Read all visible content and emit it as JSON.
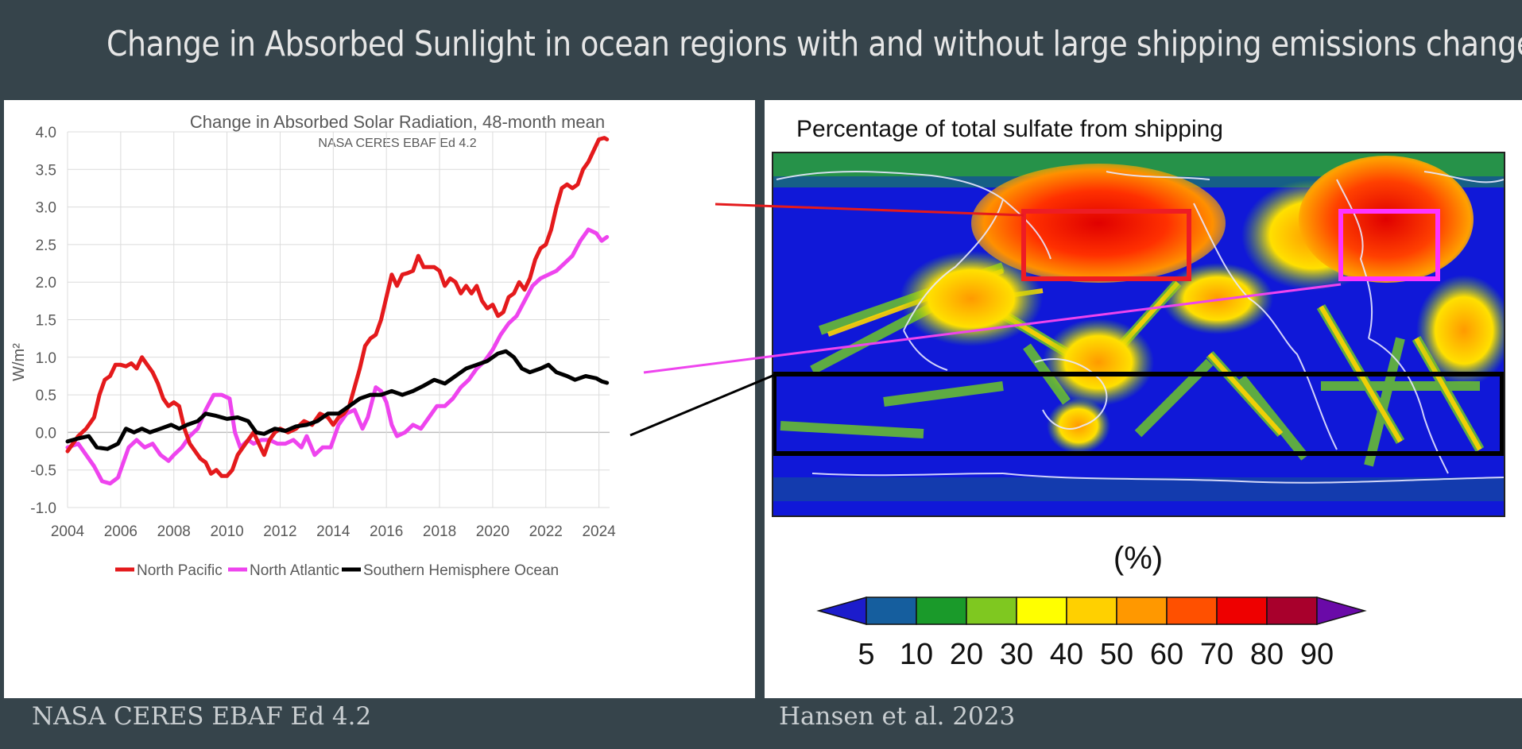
{
  "slide": {
    "title": "Change in Absorbed Sunlight in ocean regions with and without large shipping emissions changes",
    "footer_left": "NASA CERES EBAF Ed 4.2",
    "footer_right": "Hansen et al. 2023"
  },
  "colors": {
    "background": "#36444b",
    "north_pacific": "#e41a1c",
    "north_atlantic": "#ee44ee",
    "southern_hemisphere": "#000000",
    "box_north_pacific": "#ee1c24",
    "box_north_atlantic": "#ff33ff",
    "box_southern": "#000000"
  },
  "chart_data": [
    {
      "type": "line",
      "title": "Change in Absorbed Solar Radiation, 48-month mean",
      "subtitle": "NASA CERES EBAF Ed 4.2",
      "xlabel": "",
      "ylabel": "W/m²",
      "xlim": [
        2004,
        2024.4
      ],
      "ylim": [
        -1.0,
        4.0
      ],
      "xticks": [
        "2004",
        "2006",
        "2008",
        "2010",
        "2012",
        "2014",
        "2016",
        "2018",
        "2020",
        "2022",
        "2024"
      ],
      "yticks": [
        "4.0",
        "3.5",
        "3.0",
        "2.5",
        "2.0",
        "1.5",
        "1.0",
        "0.5",
        "0.0",
        "-0.5",
        "-1.0"
      ],
      "grid": true,
      "legend_position": "bottom",
      "series": [
        {
          "name": "North Pacific",
          "color": "#e41a1c",
          "points": [
            [
              2004,
              -0.25
            ],
            [
              2004.4,
              -0.05
            ],
            [
              2004.7,
              0.05
            ],
            [
              2005,
              0.2
            ],
            [
              2005.2,
              0.5
            ],
            [
              2005.4,
              0.7
            ],
            [
              2005.6,
              0.75
            ],
            [
              2005.8,
              0.9
            ],
            [
              2006,
              0.9
            ],
            [
              2006.2,
              0.88
            ],
            [
              2006.4,
              0.92
            ],
            [
              2006.6,
              0.85
            ],
            [
              2006.8,
              1.0
            ],
            [
              2007,
              0.9
            ],
            [
              2007.2,
              0.8
            ],
            [
              2007.4,
              0.65
            ],
            [
              2007.6,
              0.45
            ],
            [
              2007.8,
              0.35
            ],
            [
              2008,
              0.4
            ],
            [
              2008.2,
              0.35
            ],
            [
              2008.4,
              0.05
            ],
            [
              2008.6,
              -0.15
            ],
            [
              2008.8,
              -0.25
            ],
            [
              2009,
              -0.35
            ],
            [
              2009.2,
              -0.4
            ],
            [
              2009.4,
              -0.55
            ],
            [
              2009.6,
              -0.5
            ],
            [
              2009.8,
              -0.58
            ],
            [
              2010,
              -0.58
            ],
            [
              2010.2,
              -0.5
            ],
            [
              2010.4,
              -0.3
            ],
            [
              2010.6,
              -0.2
            ],
            [
              2010.8,
              -0.1
            ],
            [
              2011,
              0.0
            ],
            [
              2011.2,
              -0.15
            ],
            [
              2011.4,
              -0.3
            ],
            [
              2011.6,
              -0.1
            ],
            [
              2011.8,
              0.0
            ],
            [
              2012,
              0.05
            ],
            [
              2012.3,
              0.0
            ],
            [
              2012.6,
              0.05
            ],
            [
              2012.9,
              0.15
            ],
            [
              2013.2,
              0.1
            ],
            [
              2013.5,
              0.25
            ],
            [
              2013.8,
              0.2
            ],
            [
              2014,
              0.1
            ],
            [
              2014.2,
              0.2
            ],
            [
              2014.4,
              0.25
            ],
            [
              2014.6,
              0.35
            ],
            [
              2014.8,
              0.6
            ],
            [
              2015,
              0.85
            ],
            [
              2015.2,
              1.15
            ],
            [
              2015.4,
              1.25
            ],
            [
              2015.6,
              1.3
            ],
            [
              2015.8,
              1.5
            ],
            [
              2016,
              1.8
            ],
            [
              2016.2,
              2.1
            ],
            [
              2016.4,
              1.95
            ],
            [
              2016.6,
              2.1
            ],
            [
              2016.8,
              2.12
            ],
            [
              2017,
              2.15
            ],
            [
              2017.2,
              2.35
            ],
            [
              2017.4,
              2.2
            ],
            [
              2017.6,
              2.2
            ],
            [
              2017.8,
              2.2
            ],
            [
              2018,
              2.15
            ],
            [
              2018.2,
              1.95
            ],
            [
              2018.4,
              2.05
            ],
            [
              2018.6,
              2.0
            ],
            [
              2018.8,
              1.85
            ],
            [
              2019,
              1.95
            ],
            [
              2019.2,
              1.85
            ],
            [
              2019.4,
              1.95
            ],
            [
              2019.6,
              1.75
            ],
            [
              2019.8,
              1.65
            ],
            [
              2020,
              1.7
            ],
            [
              2020.2,
              1.55
            ],
            [
              2020.4,
              1.6
            ],
            [
              2020.6,
              1.8
            ],
            [
              2020.8,
              1.85
            ],
            [
              2021,
              2.0
            ],
            [
              2021.2,
              1.9
            ],
            [
              2021.4,
              2.05
            ],
            [
              2021.6,
              2.3
            ],
            [
              2021.8,
              2.45
            ],
            [
              2022,
              2.5
            ],
            [
              2022.2,
              2.7
            ],
            [
              2022.4,
              3.0
            ],
            [
              2022.6,
              3.25
            ],
            [
              2022.8,
              3.3
            ],
            [
              2023,
              3.25
            ],
            [
              2023.2,
              3.3
            ],
            [
              2023.4,
              3.5
            ],
            [
              2023.6,
              3.6
            ],
            [
              2023.8,
              3.75
            ],
            [
              2024,
              3.9
            ],
            [
              2024.2,
              3.92
            ],
            [
              2024.3,
              3.9
            ]
          ]
        },
        {
          "name": "North Atlantic",
          "color": "#ee44ee",
          "points": [
            [
              2004,
              -0.2
            ],
            [
              2004.4,
              -0.15
            ],
            [
              2004.7,
              -0.3
            ],
            [
              2005,
              -0.45
            ],
            [
              2005.3,
              -0.65
            ],
            [
              2005.6,
              -0.68
            ],
            [
              2005.9,
              -0.6
            ],
            [
              2006.1,
              -0.4
            ],
            [
              2006.3,
              -0.2
            ],
            [
              2006.6,
              -0.1
            ],
            [
              2006.9,
              -0.2
            ],
            [
              2007.2,
              -0.15
            ],
            [
              2007.5,
              -0.3
            ],
            [
              2007.8,
              -0.38
            ],
            [
              2008,
              -0.3
            ],
            [
              2008.3,
              -0.2
            ],
            [
              2008.6,
              -0.05
            ],
            [
              2008.9,
              0.05
            ],
            [
              2009.2,
              0.3
            ],
            [
              2009.5,
              0.5
            ],
            [
              2009.8,
              0.5
            ],
            [
              2010.1,
              0.45
            ],
            [
              2010.3,
              0.0
            ],
            [
              2010.5,
              -0.2
            ],
            [
              2010.8,
              -0.1
            ],
            [
              2011,
              -0.15
            ],
            [
              2011.3,
              -0.1
            ],
            [
              2011.6,
              -0.1
            ],
            [
              2011.9,
              -0.15
            ],
            [
              2012.2,
              -0.15
            ],
            [
              2012.5,
              -0.1
            ],
            [
              2012.8,
              -0.2
            ],
            [
              2013,
              -0.05
            ],
            [
              2013.3,
              -0.3
            ],
            [
              2013.6,
              -0.2
            ],
            [
              2013.9,
              -0.2
            ],
            [
              2014.2,
              0.1
            ],
            [
              2014.5,
              0.25
            ],
            [
              2014.8,
              0.3
            ],
            [
              2015.1,
              0.05
            ],
            [
              2015.3,
              0.2
            ],
            [
              2015.6,
              0.6
            ],
            [
              2015.8,
              0.55
            ],
            [
              2016,
              0.4
            ],
            [
              2016.2,
              0.1
            ],
            [
              2016.4,
              -0.05
            ],
            [
              2016.7,
              0.0
            ],
            [
              2017,
              0.1
            ],
            [
              2017.3,
              0.05
            ],
            [
              2017.6,
              0.2
            ],
            [
              2017.9,
              0.35
            ],
            [
              2018.2,
              0.35
            ],
            [
              2018.5,
              0.45
            ],
            [
              2018.8,
              0.6
            ],
            [
              2019.1,
              0.7
            ],
            [
              2019.4,
              0.85
            ],
            [
              2019.7,
              0.95
            ],
            [
              2020,
              1.1
            ],
            [
              2020.3,
              1.3
            ],
            [
              2020.6,
              1.45
            ],
            [
              2020.9,
              1.55
            ],
            [
              2021.2,
              1.75
            ],
            [
              2021.5,
              1.95
            ],
            [
              2021.8,
              2.05
            ],
            [
              2022.1,
              2.1
            ],
            [
              2022.4,
              2.15
            ],
            [
              2022.7,
              2.25
            ],
            [
              2023,
              2.35
            ],
            [
              2023.3,
              2.55
            ],
            [
              2023.6,
              2.7
            ],
            [
              2023.9,
              2.65
            ],
            [
              2024.1,
              2.55
            ],
            [
              2024.3,
              2.6
            ]
          ]
        },
        {
          "name": "Southern Hemisphere Ocean",
          "color": "#000000",
          "points": [
            [
              2004,
              -0.12
            ],
            [
              2004.4,
              -0.08
            ],
            [
              2004.8,
              -0.05
            ],
            [
              2005.1,
              -0.2
            ],
            [
              2005.5,
              -0.22
            ],
            [
              2005.9,
              -0.15
            ],
            [
              2006.2,
              0.05
            ],
            [
              2006.5,
              0.0
            ],
            [
              2006.8,
              0.05
            ],
            [
              2007.1,
              0.0
            ],
            [
              2007.5,
              0.05
            ],
            [
              2007.9,
              0.1
            ],
            [
              2008.2,
              0.05
            ],
            [
              2008.5,
              0.1
            ],
            [
              2008.9,
              0.15
            ],
            [
              2009.2,
              0.25
            ],
            [
              2009.6,
              0.22
            ],
            [
              2010,
              0.18
            ],
            [
              2010.4,
              0.2
            ],
            [
              2010.8,
              0.15
            ],
            [
              2011.1,
              0.0
            ],
            [
              2011.4,
              -0.02
            ],
            [
              2011.8,
              0.05
            ],
            [
              2012.2,
              0.02
            ],
            [
              2012.6,
              0.08
            ],
            [
              2013,
              0.1
            ],
            [
              2013.4,
              0.15
            ],
            [
              2013.8,
              0.25
            ],
            [
              2014.2,
              0.25
            ],
            [
              2014.6,
              0.35
            ],
            [
              2015,
              0.45
            ],
            [
              2015.4,
              0.5
            ],
            [
              2015.8,
              0.5
            ],
            [
              2016.2,
              0.55
            ],
            [
              2016.6,
              0.5
            ],
            [
              2017,
              0.55
            ],
            [
              2017.4,
              0.62
            ],
            [
              2017.8,
              0.7
            ],
            [
              2018.2,
              0.65
            ],
            [
              2018.6,
              0.75
            ],
            [
              2019,
              0.85
            ],
            [
              2019.4,
              0.9
            ],
            [
              2019.8,
              0.95
            ],
            [
              2020.2,
              1.05
            ],
            [
              2020.5,
              1.08
            ],
            [
              2020.8,
              1.0
            ],
            [
              2021.1,
              0.85
            ],
            [
              2021.4,
              0.8
            ],
            [
              2021.8,
              0.85
            ],
            [
              2022.1,
              0.9
            ],
            [
              2022.4,
              0.8
            ],
            [
              2022.8,
              0.75
            ],
            [
              2023.1,
              0.7
            ],
            [
              2023.5,
              0.75
            ],
            [
              2023.9,
              0.72
            ],
            [
              2024.1,
              0.68
            ],
            [
              2024.3,
              0.66
            ]
          ]
        }
      ]
    },
    {
      "type": "heatmap",
      "title": "Percentage of total sulfate from shipping",
      "colorbar_label": "(%)",
      "colorbar_ticks": [
        "5",
        "10",
        "20",
        "30",
        "40",
        "50",
        "60",
        "70",
        "80",
        "90"
      ],
      "colorbar_colors": [
        "#1c1ccc",
        "#155e9e",
        "#1a9a2a",
        "#7fc820",
        "#ffff00",
        "#ffd000",
        "#ff9800",
        "#ff5000",
        "#ee0000",
        "#a8002c",
        "#6a0aa8"
      ],
      "highlight_boxes": [
        {
          "name": "North Pacific",
          "color": "#ee1c24"
        },
        {
          "name": "North Atlantic",
          "color": "#ff33ff"
        },
        {
          "name": "Southern Hemisphere Ocean",
          "color": "#000000"
        }
      ]
    }
  ]
}
